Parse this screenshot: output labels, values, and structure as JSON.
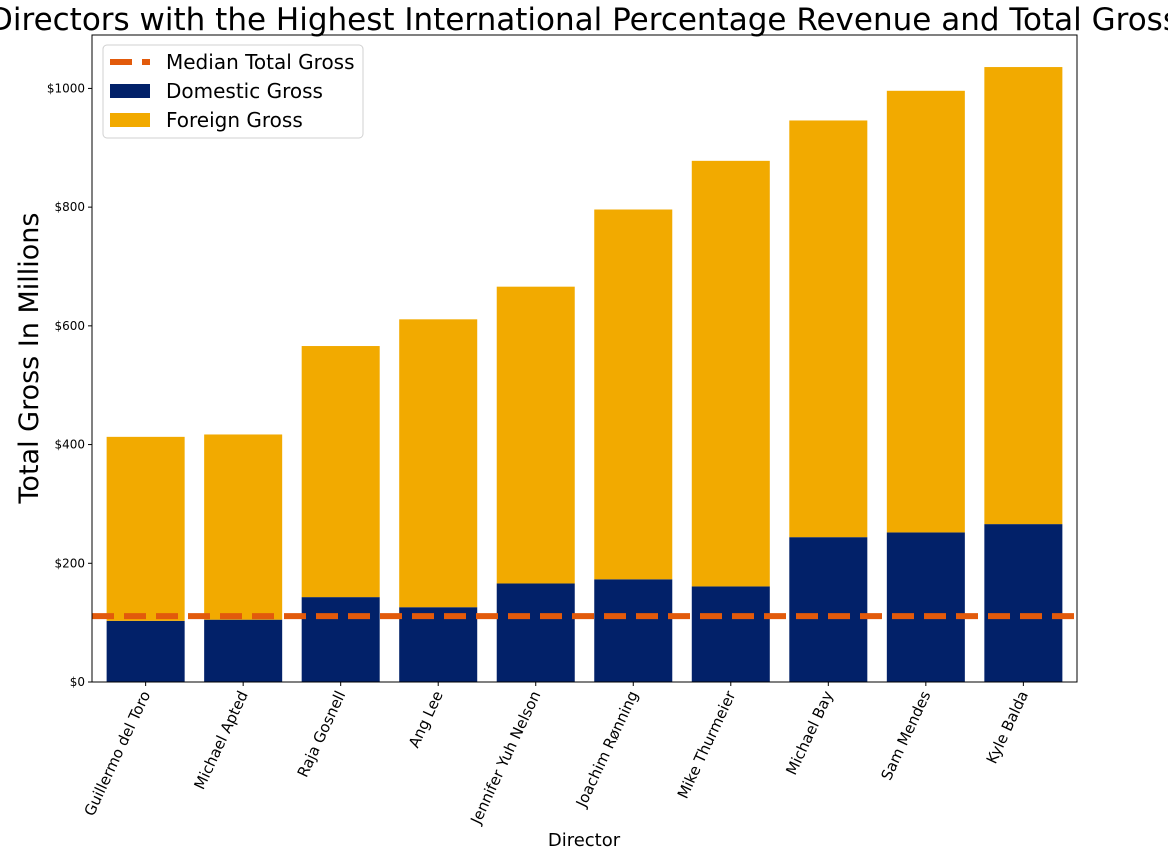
{
  "chart_data": {
    "type": "bar",
    "stacked": true,
    "title": "Directors with the Highest International Percentage Revenue and Total Gross",
    "xlabel": "Director",
    "ylabel": "Total Gross In Millions",
    "ylim": [
      0,
      1090
    ],
    "yticks": [
      0,
      200,
      400,
      600,
      800,
      1000
    ],
    "ytick_labels": [
      "$0",
      "$200",
      "$400",
      "$600",
      "$800",
      "$1000"
    ],
    "categories": [
      "Guillermo del Toro",
      "Michael Apted",
      "Raja Gosnell",
      "Ang Lee",
      "Jennifer Yuh Nelson",
      "Joachim Rønning",
      "Mike Thurmeier",
      "Michael Bay",
      "Sam Mendes",
      "Kyle Balda"
    ],
    "series": [
      {
        "name": "Domestic Gross",
        "color": "#022169",
        "values": [
          103,
          105,
          143,
          126,
          166,
          173,
          161,
          244,
          252,
          266
        ]
      },
      {
        "name": "Foreign Gross",
        "color": "#f2aa00",
        "values": [
          310,
          312,
          423,
          485,
          500,
          623,
          717,
          702,
          744,
          770
        ]
      }
    ],
    "reference_line": {
      "name": "Median Total Gross",
      "value": 111,
      "color": "#e25a0b",
      "style": "dashed"
    },
    "legend": {
      "position": "top-left",
      "entries": [
        "Median Total Gross",
        "Domestic Gross",
        "Foreign Gross"
      ]
    },
    "grid": false
  }
}
